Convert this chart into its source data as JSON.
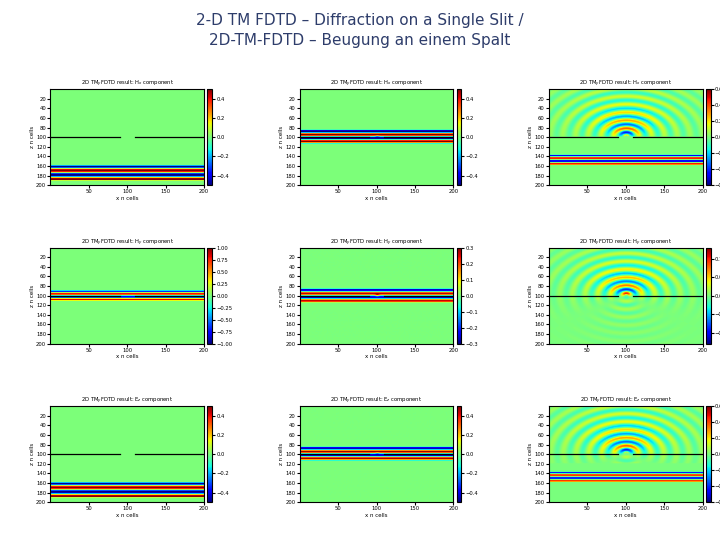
{
  "title_line1": "2-D TM FDTD – Diffraction on a Single Slit /",
  "title_line2": "2D-TM-FDTD – Beugung an einem Spalt",
  "title_color": "#2e3d6b",
  "title_fontsize": 11,
  "background": "#ffffff",
  "subplot_titles": [
    [
      "2D TM$_y$FDTD result: H$_x$ component",
      "2D TM$_y$FDTD result: H$_x$ component",
      "2D TM$_y$FDTD result: H$_x$ component"
    ],
    [
      "2D TM$_y$FDTD result: H$_y$ component",
      "2D TM$_y$FDTD result: H$_y$ component",
      "2D TM$_y$FDTD result: H$_y$ component"
    ],
    [
      "2D TM$_y$FDTD result: E$_z$ component",
      "2D TM$_y$FDTD result: E$_z$ component",
      "2D TM$_y$FDTD result: E$_z$ component"
    ]
  ],
  "xlabel": "x n cells",
  "ylabel": "z n cells",
  "nx": 200,
  "nz": 200,
  "clims": [
    [
      [
        -0.5,
        0.5
      ],
      [
        -0.5,
        0.5
      ],
      [
        -0.6,
        0.6
      ]
    ],
    [
      [
        -1.0,
        1.0
      ],
      [
        -0.3,
        0.3
      ],
      [
        -0.13,
        0.13
      ]
    ],
    [
      [
        -0.5,
        0.5
      ],
      [
        -0.5,
        0.5
      ],
      [
        -0.6,
        0.6
      ]
    ]
  ]
}
